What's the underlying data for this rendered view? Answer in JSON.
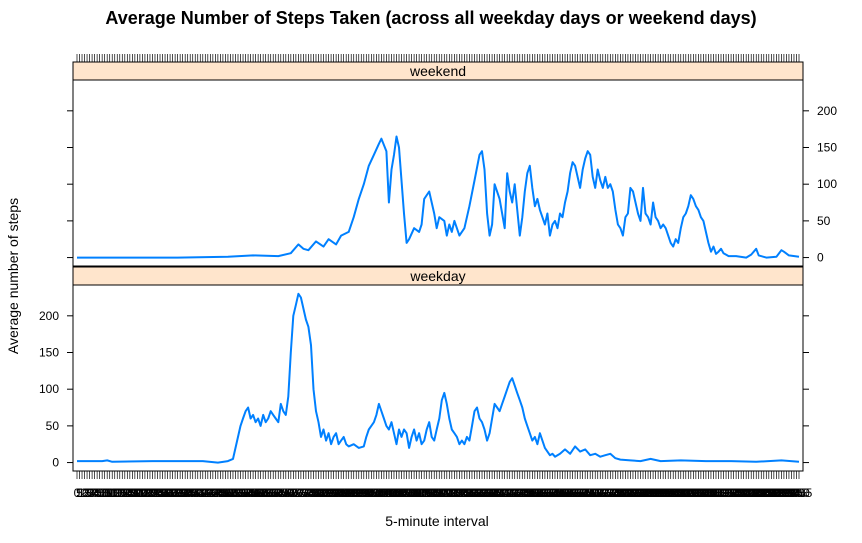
{
  "chart_data": {
    "type": "line",
    "title": "Average Number of Steps Taken (across all weekday days or weekend days)",
    "xlabel": "5-minute interval",
    "ylabel": "Average number of steps",
    "x_axis": {
      "type": "categorical",
      "count": 288,
      "first_interval": 0,
      "last_interval": 2355,
      "step_minutes": 5
    },
    "ylim": [
      -11.5,
      242
    ],
    "yticks": [
      0,
      50,
      100,
      150,
      200
    ],
    "line_color": "#0080FF",
    "strip_color": "#FFE5CC",
    "panels": [
      {
        "name": "weekend",
        "points": [
          [
            0,
            0
          ],
          [
            40,
            0
          ],
          [
            60,
            1
          ],
          [
            70,
            3
          ],
          [
            80,
            2
          ],
          [
            85,
            6
          ],
          [
            88,
            18
          ],
          [
            90,
            12
          ],
          [
            92,
            10
          ],
          [
            95,
            22
          ],
          [
            98,
            15
          ],
          [
            100,
            25
          ],
          [
            103,
            18
          ],
          [
            105,
            30
          ],
          [
            108,
            35
          ],
          [
            110,
            55
          ],
          [
            112,
            80
          ],
          [
            114,
            100
          ],
          [
            116,
            125
          ],
          [
            118,
            140
          ],
          [
            120,
            155
          ],
          [
            121,
            162
          ],
          [
            123,
            145
          ],
          [
            124,
            75
          ],
          [
            125,
            120
          ],
          [
            126,
            140
          ],
          [
            127,
            165
          ],
          [
            128,
            150
          ],
          [
            130,
            60
          ],
          [
            131,
            20
          ],
          [
            132,
            25
          ],
          [
            134,
            40
          ],
          [
            136,
            35
          ],
          [
            137,
            45
          ],
          [
            138,
            80
          ],
          [
            140,
            90
          ],
          [
            142,
            60
          ],
          [
            143,
            40
          ],
          [
            144,
            55
          ],
          [
            146,
            50
          ],
          [
            147,
            30
          ],
          [
            148,
            45
          ],
          [
            149,
            35
          ],
          [
            150,
            50
          ],
          [
            152,
            30
          ],
          [
            154,
            40
          ],
          [
            156,
            70
          ],
          [
            158,
            105
          ],
          [
            160,
            140
          ],
          [
            161,
            145
          ],
          [
            162,
            120
          ],
          [
            163,
            60
          ],
          [
            164,
            30
          ],
          [
            165,
            45
          ],
          [
            166,
            100
          ],
          [
            168,
            80
          ],
          [
            170,
            40
          ],
          [
            171,
            115
          ],
          [
            172,
            90
          ],
          [
            173,
            75
          ],
          [
            174,
            100
          ],
          [
            176,
            30
          ],
          [
            177,
            55
          ],
          [
            178,
            90
          ],
          [
            179,
            115
          ],
          [
            180,
            125
          ],
          [
            181,
            95
          ],
          [
            182,
            70
          ],
          [
            183,
            80
          ],
          [
            184,
            65
          ],
          [
            185,
            55
          ],
          [
            186,
            45
          ],
          [
            187,
            60
          ],
          [
            188,
            30
          ],
          [
            189,
            45
          ],
          [
            190,
            50
          ],
          [
            191,
            40
          ],
          [
            192,
            60
          ],
          [
            193,
            55
          ],
          [
            194,
            75
          ],
          [
            195,
            90
          ],
          [
            196,
            115
          ],
          [
            197,
            130
          ],
          [
            198,
            125
          ],
          [
            199,
            110
          ],
          [
            200,
            95
          ],
          [
            201,
            120
          ],
          [
            202,
            135
          ],
          [
            203,
            145
          ],
          [
            204,
            140
          ],
          [
            205,
            110
          ],
          [
            206,
            95
          ],
          [
            207,
            120
          ],
          [
            208,
            105
          ],
          [
            209,
            95
          ],
          [
            210,
            110
          ],
          [
            211,
            95
          ],
          [
            212,
            100
          ],
          [
            213,
            90
          ],
          [
            214,
            65
          ],
          [
            215,
            45
          ],
          [
            216,
            40
          ],
          [
            217,
            30
          ],
          [
            218,
            55
          ],
          [
            219,
            60
          ],
          [
            220,
            95
          ],
          [
            221,
            90
          ],
          [
            222,
            75
          ],
          [
            223,
            60
          ],
          [
            224,
            50
          ],
          [
            225,
            95
          ],
          [
            226,
            60
          ],
          [
            227,
            55
          ],
          [
            228,
            45
          ],
          [
            229,
            75
          ],
          [
            230,
            55
          ],
          [
            231,
            50
          ],
          [
            232,
            40
          ],
          [
            233,
            45
          ],
          [
            234,
            40
          ],
          [
            235,
            30
          ],
          [
            236,
            20
          ],
          [
            237,
            15
          ],
          [
            238,
            25
          ],
          [
            239,
            20
          ],
          [
            240,
            40
          ],
          [
            241,
            55
          ],
          [
            242,
            60
          ],
          [
            243,
            70
          ],
          [
            244,
            85
          ],
          [
            245,
            80
          ],
          [
            246,
            70
          ],
          [
            247,
            65
          ],
          [
            248,
            55
          ],
          [
            249,
            50
          ],
          [
            250,
            35
          ],
          [
            251,
            20
          ],
          [
            252,
            8
          ],
          [
            253,
            15
          ],
          [
            254,
            5
          ],
          [
            255,
            8
          ],
          [
            256,
            12
          ],
          [
            257,
            6
          ],
          [
            258,
            4
          ],
          [
            259,
            2
          ],
          [
            262,
            2
          ],
          [
            266,
            0
          ],
          [
            268,
            4
          ],
          [
            270,
            12
          ],
          [
            271,
            3
          ],
          [
            274,
            0
          ],
          [
            278,
            1
          ],
          [
            280,
            10
          ],
          [
            281,
            8
          ],
          [
            283,
            3
          ],
          [
            287,
            1
          ]
        ]
      },
      {
        "name": "weekday",
        "points": [
          [
            0,
            2
          ],
          [
            10,
            2
          ],
          [
            12,
            3
          ],
          [
            14,
            1
          ],
          [
            30,
            2
          ],
          [
            50,
            2
          ],
          [
            56,
            0
          ],
          [
            60,
            2
          ],
          [
            62,
            5
          ],
          [
            63,
            20
          ],
          [
            64,
            35
          ],
          [
            65,
            50
          ],
          [
            66,
            60
          ],
          [
            67,
            70
          ],
          [
            68,
            75
          ],
          [
            69,
            60
          ],
          [
            70,
            65
          ],
          [
            71,
            55
          ],
          [
            72,
            60
          ],
          [
            73,
            50
          ],
          [
            74,
            65
          ],
          [
            75,
            55
          ],
          [
            76,
            60
          ],
          [
            77,
            70
          ],
          [
            78,
            65
          ],
          [
            79,
            60
          ],
          [
            80,
            55
          ],
          [
            81,
            80
          ],
          [
            82,
            70
          ],
          [
            83,
            65
          ],
          [
            84,
            90
          ],
          [
            85,
            150
          ],
          [
            86,
            200
          ],
          [
            87,
            215
          ],
          [
            88,
            230
          ],
          [
            89,
            225
          ],
          [
            90,
            210
          ],
          [
            91,
            195
          ],
          [
            92,
            185
          ],
          [
            93,
            160
          ],
          [
            94,
            100
          ],
          [
            95,
            70
          ],
          [
            96,
            55
          ],
          [
            97,
            35
          ],
          [
            98,
            45
          ],
          [
            99,
            30
          ],
          [
            100,
            40
          ],
          [
            101,
            25
          ],
          [
            102,
            35
          ],
          [
            103,
            40
          ],
          [
            104,
            25
          ],
          [
            105,
            30
          ],
          [
            106,
            35
          ],
          [
            107,
            25
          ],
          [
            108,
            22
          ],
          [
            110,
            25
          ],
          [
            112,
            20
          ],
          [
            114,
            22
          ],
          [
            115,
            35
          ],
          [
            116,
            45
          ],
          [
            117,
            50
          ],
          [
            118,
            55
          ],
          [
            119,
            65
          ],
          [
            120,
            80
          ],
          [
            121,
            70
          ],
          [
            122,
            60
          ],
          [
            123,
            50
          ],
          [
            124,
            45
          ],
          [
            125,
            55
          ],
          [
            126,
            40
          ],
          [
            127,
            25
          ],
          [
            128,
            45
          ],
          [
            129,
            35
          ],
          [
            130,
            45
          ],
          [
            131,
            40
          ],
          [
            132,
            20
          ],
          [
            133,
            35
          ],
          [
            134,
            45
          ],
          [
            135,
            30
          ],
          [
            136,
            40
          ],
          [
            137,
            25
          ],
          [
            138,
            30
          ],
          [
            139,
            45
          ],
          [
            140,
            55
          ],
          [
            141,
            35
          ],
          [
            142,
            30
          ],
          [
            143,
            45
          ],
          [
            144,
            60
          ],
          [
            145,
            85
          ],
          [
            146,
            95
          ],
          [
            147,
            80
          ],
          [
            148,
            60
          ],
          [
            149,
            45
          ],
          [
            150,
            40
          ],
          [
            151,
            35
          ],
          [
            152,
            25
          ],
          [
            153,
            30
          ],
          [
            154,
            25
          ],
          [
            155,
            35
          ],
          [
            156,
            30
          ],
          [
            157,
            50
          ],
          [
            158,
            70
          ],
          [
            159,
            75
          ],
          [
            160,
            60
          ],
          [
            161,
            55
          ],
          [
            162,
            45
          ],
          [
            163,
            30
          ],
          [
            164,
            40
          ],
          [
            165,
            60
          ],
          [
            166,
            80
          ],
          [
            167,
            75
          ],
          [
            168,
            70
          ],
          [
            169,
            80
          ],
          [
            170,
            90
          ],
          [
            171,
            100
          ],
          [
            172,
            110
          ],
          [
            173,
            115
          ],
          [
            174,
            105
          ],
          [
            175,
            95
          ],
          [
            176,
            85
          ],
          [
            177,
            75
          ],
          [
            178,
            60
          ],
          [
            179,
            50
          ],
          [
            180,
            40
          ],
          [
            181,
            30
          ],
          [
            182,
            35
          ],
          [
            183,
            25
          ],
          [
            184,
            40
          ],
          [
            185,
            30
          ],
          [
            186,
            20
          ],
          [
            187,
            15
          ],
          [
            188,
            10
          ],
          [
            189,
            12
          ],
          [
            190,
            8
          ],
          [
            192,
            12
          ],
          [
            194,
            18
          ],
          [
            196,
            12
          ],
          [
            198,
            22
          ],
          [
            200,
            15
          ],
          [
            202,
            18
          ],
          [
            204,
            10
          ],
          [
            206,
            12
          ],
          [
            208,
            8
          ],
          [
            210,
            10
          ],
          [
            212,
            12
          ],
          [
            214,
            6
          ],
          [
            216,
            4
          ],
          [
            220,
            3
          ],
          [
            224,
            2
          ],
          [
            228,
            5
          ],
          [
            232,
            2
          ],
          [
            240,
            3
          ],
          [
            250,
            2
          ],
          [
            260,
            2
          ],
          [
            270,
            1
          ],
          [
            280,
            3
          ],
          [
            287,
            1
          ]
        ]
      }
    ]
  }
}
